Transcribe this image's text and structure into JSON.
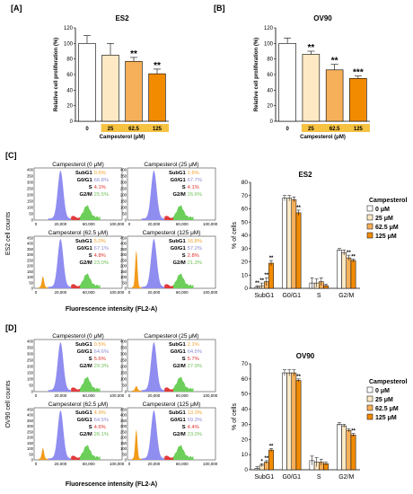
{
  "panel_labels": {
    "A": "[A]",
    "B": "[B]",
    "C": "[C]",
    "D": "[D]"
  },
  "colors": {
    "c0": "#ffffff",
    "c25": "#fde9c4",
    "c62": "#f7b05a",
    "c125": "#f28b00",
    "xbar": "#f5c242",
    "subg1_text": "#f0a12c",
    "g0g1_text": "#8b89d6",
    "s_text": "#e0302a",
    "g2m_text": "#6fbf55",
    "hist_blue": "#8f8df0",
    "hist_green": "#6ccf5a",
    "hist_red": "#e23a3a",
    "hist_orange": "#f29b1a"
  },
  "flow_common": {
    "ylabel_C": "ES2 cell counts",
    "ylabel_D": "OV90 cell counts",
    "xlabel": "Fluorescence intensity (FL2-A)",
    "xticks": [
      "0",
      "20,000",
      "60,000",
      "100,000"
    ],
    "yticks_top": [
      "0",
      "50",
      "100",
      "150",
      "200",
      "250",
      "300",
      "350",
      "400"
    ],
    "yticks_bottom": [
      "0",
      "50",
      "100",
      "150",
      "200",
      "250",
      "300",
      "350",
      "400",
      "450"
    ],
    "phase_labels": [
      "SubG1",
      "G0/G1",
      "S",
      "G2/M"
    ]
  },
  "flow_C": [
    {
      "title": "Campesterol (0 μM)",
      "values": [
        "0.6%",
        "66.8%",
        "4.1%",
        "25.5%"
      ]
    },
    {
      "title": "Campesterol (25 μM)",
      "values": [
        "1.6%",
        "67.7%",
        "4.1%",
        "26.6%"
      ]
    },
    {
      "title": "Campesterol (62.5 μM)",
      "values": [
        "5.0%",
        "67.1%",
        "4.8%",
        "23.0%"
      ]
    },
    {
      "title": "Campesterol (125 μM)",
      "values": [
        "16.8%",
        "57.2%",
        "2.8%",
        "21.3%"
      ]
    }
  ],
  "flow_D": [
    {
      "title": "Campesterol (0 μM)",
      "values": [
        "0.5%",
        "64.6%",
        "5.6%",
        "29.3%"
      ]
    },
    {
      "title": "Campesterol (25 μM)",
      "values": [
        "2.1%",
        "64.5%",
        "5.7%",
        "27.9%"
      ]
    },
    {
      "title": "Campesterol (62.5 μM)",
      "values": [
        "4.9%",
        "64.5%",
        "4.6%",
        "26.1%"
      ]
    },
    {
      "title": "Campesterol (125 μM)",
      "values": [
        "13.3%",
        "59.3%",
        "4.4%",
        "23.0%"
      ]
    }
  ],
  "chart_data": [
    {
      "type": "bar",
      "title": "ES2",
      "ylabel": "Relative cell proliferation (%)",
      "xlabel": "Campesterol (μM)",
      "categories": [
        "0",
        "25",
        "62.5",
        "125"
      ],
      "values": [
        100,
        85,
        77,
        61
      ],
      "errors": [
        10,
        15,
        5,
        6
      ],
      "significance": [
        "",
        "",
        "**",
        "**"
      ],
      "yticks": [
        "0",
        "20",
        "40",
        "60",
        "80",
        "100",
        "120"
      ],
      "ylim": [
        0,
        120
      ]
    },
    {
      "type": "bar",
      "title": "OV90",
      "ylabel": "Relative cell proliferation (%)",
      "xlabel": "Campesterol (μM)",
      "categories": [
        "0",
        "25",
        "62.5",
        "125"
      ],
      "values": [
        100,
        86,
        66,
        55
      ],
      "errors": [
        7,
        4,
        7,
        3
      ],
      "significance": [
        "",
        "**",
        "**",
        "***"
      ],
      "yticks": [
        "0",
        "20",
        "40",
        "60",
        "80",
        "100",
        "120"
      ],
      "ylim": [
        0,
        120
      ]
    },
    {
      "type": "bar",
      "title": "ES2",
      "ylabel": "% of cells",
      "categories": [
        "SubG1",
        "G0/G1",
        "S",
        "G2/M"
      ],
      "legend_title": "Campesterol",
      "legend_position": "right",
      "series": [
        {
          "name": "0 μM",
          "values": [
            1,
            68,
            4,
            29
          ],
          "errors": [
            1,
            2,
            4,
            1
          ]
        },
        {
          "name": "25 μM",
          "values": [
            2,
            68,
            4,
            27
          ],
          "errors": [
            2,
            2,
            3,
            2
          ]
        },
        {
          "name": "62.5 μM",
          "values": [
            5,
            67,
            5,
            23
          ],
          "errors": [
            3,
            2,
            3,
            2
          ]
        },
        {
          "name": "125 μM",
          "values": [
            19,
            57,
            2,
            21
          ],
          "errors": [
            2,
            2,
            1,
            1
          ]
        }
      ],
      "significance": [
        [
          "**",
          "**",
          "**",
          "**"
        ],
        [
          "",
          "",
          "",
          "**"
        ],
        [
          "",
          "",
          "",
          ""
        ],
        [
          "",
          "",
          "**",
          "**"
        ]
      ],
      "yticks": [
        "0",
        "10",
        "20",
        "30",
        "40",
        "50",
        "60",
        "70",
        "80"
      ],
      "ylim": [
        0,
        80
      ]
    },
    {
      "type": "bar",
      "title": "OV90",
      "ylabel": "% of cells",
      "categories": [
        "SubG1",
        "G0/G1",
        "S",
        "G2/M"
      ],
      "legend_title": "Campesterol",
      "legend_position": "right",
      "series": [
        {
          "name": "0 μM",
          "values": [
            1,
            64,
            6,
            30
          ],
          "errors": [
            1,
            2,
            3,
            1
          ]
        },
        {
          "name": "25 μM",
          "values": [
            3,
            64,
            5,
            29
          ],
          "errors": [
            1,
            2,
            3,
            1
          ]
        },
        {
          "name": "62.5 μM",
          "values": [
            5,
            64,
            5,
            26
          ],
          "errors": [
            1,
            2,
            2,
            1
          ]
        },
        {
          "name": "125 μM",
          "values": [
            13,
            59,
            4,
            23
          ],
          "errors": [
            1,
            1,
            1,
            1
          ]
        }
      ],
      "significance": [
        [
          "",
          "*",
          "**",
          "**"
        ],
        [
          "",
          "",
          "",
          "**"
        ],
        [
          "",
          "",
          "",
          ""
        ],
        [
          "",
          "",
          "",
          "**"
        ]
      ],
      "yticks": [
        "0",
        "10",
        "20",
        "30",
        "40",
        "50",
        "60",
        "70"
      ],
      "ylim": [
        0,
        70
      ]
    }
  ]
}
